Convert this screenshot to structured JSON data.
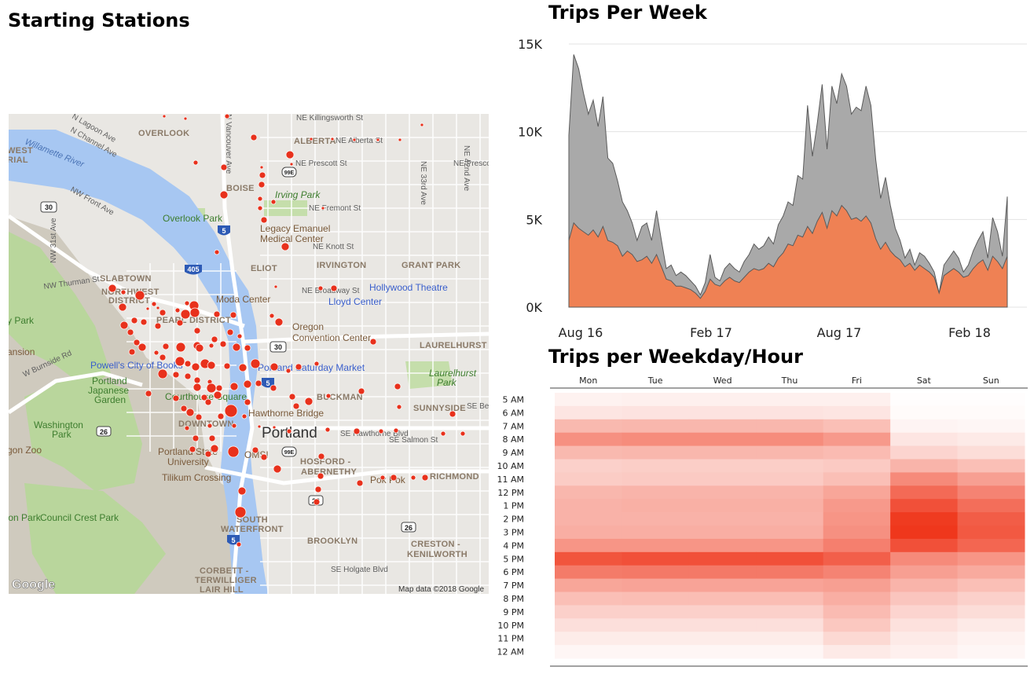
{
  "panels": {
    "map_title": "Starting Stations",
    "line_title": "Trips Per Week",
    "heat_title": "Trips per Weekday/Hour"
  },
  "map": {
    "labels": {
      "overlook": "OVERLOOK",
      "alberta": "ALBERTA",
      "boise": "BOISE",
      "irving_park": "Irving Park",
      "overlook_park": "Overlook Park",
      "legacy1": "Legacy Emanuel",
      "legacy2": "Medical Center",
      "eliot": "ELIOT",
      "irvington": "IRVINGTON",
      "grant_park": "GRANT PARK",
      "slabtown": "SLABTOWN",
      "northwest1": "NORTHWEST",
      "northwest2": "DISTRICT",
      "moda": "Moda Center",
      "lloyd": "Lloyd Center",
      "hollywood": "Hollywood Theatre",
      "pearl": "PEARL DISTRICT",
      "oregon_cc1": "Oregon",
      "oregon_cc2": "Convention Center",
      "laurelhurst": "LAURELHURST",
      "laurelhurst_park1": "Laurelhurst",
      "laurelhurst_park2": "Park",
      "powells": "Powell's City of Books",
      "saturday_market": "Portland Saturday Market",
      "japanese1": "Portland",
      "japanese2": "Japanese",
      "japanese3": "Garden",
      "courthouse": "Courthouse Square",
      "buckman": "BUCKMAN",
      "sunnyside": "SUNNYSIDE",
      "hawthorne": "Hawthorne Bridge",
      "washington1": "Washington",
      "washington2": "Park",
      "downtown": "DOWNTOWN",
      "portland": "Portland",
      "zoo": "Oregon Zoo",
      "psu1": "Portland State",
      "psu2": "University",
      "omsi": "OMSI",
      "hosford1": "HOSFORD -",
      "hosford2": "ABERNETHY",
      "tilikum": "Tilikum Crossing",
      "pok_pok": "Pok Pok",
      "richmond": "RICHMOND",
      "council_crest": "Council Crest Park",
      "south_waterfront1": "SOUTH",
      "south_waterfront2": "WATERFRONT",
      "brooklyn": "BROOKLYN",
      "creston1": "CRESTON -",
      "creston2": "KENILWORTH",
      "corbett1": "CORBETT -",
      "corbett2": "TERWILLIGER",
      "corbett3": "LAIR HILL",
      "willamette": "Willamette River",
      "st_killingsworth": "NE Killingsworth St",
      "st_alberta": "NE Alberta St",
      "st_prescott1": "NE Prescott St",
      "st_prescott2": "NE Prescott",
      "st_fremont": "NE Fremont St",
      "st_knott": "NE Knott St",
      "st_broadway": "NE Broadway St",
      "st_hawthorne": "SE Hawthorne Blvd",
      "st_salmon": "SE Salmon St",
      "st_holgate": "SE Holgate Blvd",
      "st_belmont": "SE Belm",
      "st_42nd": "NE 42nd Ave",
      "st_33rd": "NE 33rd Ave",
      "st_lagoon": "N Lagoon Ave",
      "st_channel": "N Channel Ave",
      "st_front": "NW Front Ave",
      "st_31st": "NW 31st Ave",
      "st_thurman": "NW Thurman St",
      "st_burnside": "W Burnside Rd",
      "st_vancouver": "N Vancouver Ave",
      "hwy_30": "30",
      "hwy_5a": "5",
      "hwy_5b": "5",
      "hwy_5c": "5",
      "hwy_405": "405",
      "hwy_99e_a": "99E",
      "hwy_99e_b": "99E",
      "hwy_26a": "26",
      "hwy_26b": "26",
      "hwy_26c": "26",
      "hwy_30b": "30",
      "west_clip": "WEST",
      "rial_clip": "RIAL",
      "park_clip": "y Park",
      "mansion_clip": "ansion",
      "zoo_clip": "gon Zoo",
      "ton_clip": "ton Park"
    },
    "credit": "Map data ©2018 Google",
    "logo": "Google",
    "colors": {
      "water": "#a7c7f2",
      "land": "#e9e7e3",
      "park": "#c5deab",
      "hills": "#cfcabe",
      "road": "#ffffff",
      "dot": "#e8311c"
    }
  },
  "chart_data": [
    {
      "type": "area",
      "title": "Trips Per Week",
      "x_tick_labels": [
        "Aug 16",
        "Feb 17",
        "Aug 17",
        "Feb 18"
      ],
      "y_tick_labels": [
        "15K",
        "10K",
        "5K",
        "0K"
      ],
      "ylim": [
        0,
        15000
      ],
      "grid": true,
      "colors": {
        "total": "#a9a9a9",
        "subset": "#ef8154",
        "outline": "#5a5a5a"
      },
      "series": [
        {
          "values": [
            9800,
            14400,
            13600,
            12200,
            11000,
            11800,
            10300,
            12000,
            8500,
            8200,
            7200,
            6000,
            5500,
            4800,
            3800,
            4600,
            4800,
            3800,
            5500,
            3800,
            2200,
            2400,
            1800,
            2000,
            1800,
            1500,
            1200,
            700,
            1400,
            3000,
            1700,
            1500,
            2200,
            2500,
            2200,
            2000,
            2600,
            3000,
            3600,
            3300,
            3500,
            4000,
            3600,
            4700,
            5200,
            6000,
            5800,
            7500,
            7300,
            11500,
            8600,
            10500,
            12700,
            9000,
            12600,
            11600,
            13300,
            12600,
            11000,
            11400,
            11200,
            12600,
            11500,
            8400,
            6200,
            7400,
            5800,
            4500,
            3800,
            2800,
            3300,
            2400,
            3100,
            2900,
            2500,
            2000,
            800,
            2400,
            2800,
            3200,
            2800,
            2000,
            2400,
            3200,
            3800,
            4300,
            2800,
            5100,
            4300,
            2900,
            6300
          ]
        },
        {
          "values": [
            3800,
            4800,
            4500,
            4300,
            4100,
            4400,
            4000,
            4600,
            3800,
            3700,
            3500,
            2900,
            3200,
            3000,
            2600,
            2700,
            2900,
            2500,
            3000,
            2300,
            1600,
            1500,
            1200,
            1200,
            1100,
            1000,
            800,
            500,
            900,
            1600,
            1300,
            1200,
            1500,
            1700,
            1500,
            1400,
            1700,
            2000,
            2200,
            2100,
            2200,
            2500,
            2300,
            2800,
            3100,
            3600,
            3500,
            4100,
            4000,
            4600,
            4200,
            4900,
            5400,
            4500,
            5500,
            5200,
            5800,
            5500,
            5000,
            5100,
            4900,
            5200,
            4800,
            3900,
            3300,
            3700,
            3200,
            2900,
            2700,
            2300,
            2500,
            2100,
            2400,
            2200,
            2000,
            1700,
            800,
            1800,
            2000,
            2200,
            2000,
            1700,
            1800,
            2200,
            2500,
            2700,
            2100,
            2900,
            2600,
            2200,
            2900
          ]
        }
      ]
    },
    {
      "type": "heatmap",
      "title": "Trips per Weekday/Hour",
      "columns": [
        "Mon",
        "Tue",
        "Wed",
        "Thu",
        "Fri",
        "Sat",
        "Sun"
      ],
      "rows": [
        "5 AM",
        "6 AM",
        "7 AM",
        "8 AM",
        "9 AM",
        "10 AM",
        "11 AM",
        "12 PM",
        "1 PM",
        "2 PM",
        "3 PM",
        "4 PM",
        "5 PM",
        "6 PM",
        "7 PM",
        "8 PM",
        "9 PM",
        "10 PM",
        "11 PM",
        "12 AM"
      ],
      "color_scale": [
        "#ffffff",
        "#ee2a0d"
      ],
      "values": [
        [
          0.06,
          0.07,
          0.07,
          0.07,
          0.07,
          0.01,
          0.01
        ],
        [
          0.12,
          0.13,
          0.13,
          0.13,
          0.12,
          0.02,
          0.02
        ],
        [
          0.33,
          0.34,
          0.34,
          0.34,
          0.3,
          0.05,
          0.04
        ],
        [
          0.52,
          0.54,
          0.54,
          0.54,
          0.48,
          0.12,
          0.1
        ],
        [
          0.33,
          0.34,
          0.34,
          0.34,
          0.32,
          0.2,
          0.16
        ],
        [
          0.22,
          0.23,
          0.23,
          0.23,
          0.25,
          0.35,
          0.3
        ],
        [
          0.24,
          0.25,
          0.25,
          0.25,
          0.3,
          0.55,
          0.45
        ],
        [
          0.34,
          0.35,
          0.35,
          0.35,
          0.42,
          0.7,
          0.58
        ],
        [
          0.36,
          0.37,
          0.37,
          0.37,
          0.48,
          0.82,
          0.68
        ],
        [
          0.36,
          0.36,
          0.36,
          0.36,
          0.5,
          0.92,
          0.76
        ],
        [
          0.38,
          0.38,
          0.38,
          0.38,
          0.52,
          0.94,
          0.78
        ],
        [
          0.5,
          0.5,
          0.5,
          0.5,
          0.6,
          0.82,
          0.72
        ],
        [
          0.8,
          0.82,
          0.82,
          0.82,
          0.75,
          0.55,
          0.5
        ],
        [
          0.62,
          0.63,
          0.63,
          0.63,
          0.58,
          0.45,
          0.4
        ],
        [
          0.42,
          0.43,
          0.43,
          0.43,
          0.45,
          0.35,
          0.3
        ],
        [
          0.3,
          0.31,
          0.31,
          0.31,
          0.38,
          0.27,
          0.22
        ],
        [
          0.22,
          0.22,
          0.22,
          0.22,
          0.32,
          0.2,
          0.16
        ],
        [
          0.15,
          0.15,
          0.15,
          0.15,
          0.26,
          0.14,
          0.1
        ],
        [
          0.09,
          0.09,
          0.09,
          0.09,
          0.18,
          0.1,
          0.06
        ],
        [
          0.04,
          0.04,
          0.04,
          0.04,
          0.1,
          0.07,
          0.04
        ]
      ]
    }
  ]
}
